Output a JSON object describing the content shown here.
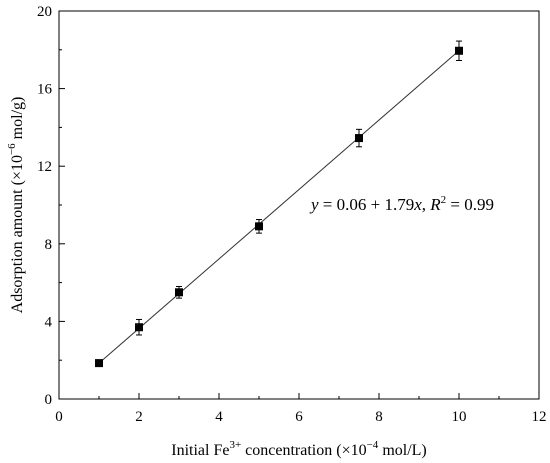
{
  "chart_data": {
    "type": "scatter",
    "title": "",
    "xlabel": {
      "prefix": "Initial Fe",
      "sup": "3+",
      "mid": " concentration (×10",
      "sup2": "−4",
      "suffix": " mol/L)"
    },
    "ylabel": {
      "prefix": "Adsorption amount (×10",
      "sup": "−6",
      "suffix": " mol/g)"
    },
    "xlim": [
      0,
      12
    ],
    "ylim": [
      0,
      20
    ],
    "xticks": [
      0,
      2,
      4,
      6,
      8,
      10,
      12
    ],
    "yticks": [
      0,
      4,
      8,
      12,
      16,
      20
    ],
    "grid": false,
    "legend": "none",
    "series": [
      {
        "x": [
          1,
          2,
          3,
          5,
          7.5,
          10
        ],
        "y": [
          1.85,
          3.7,
          5.5,
          8.9,
          13.45,
          17.95
        ],
        "error": [
          0.1,
          0.4,
          0.3,
          0.35,
          0.45,
          0.5
        ],
        "marker": "square",
        "color": "#000000"
      }
    ],
    "fit": {
      "intercept": 0.06,
      "slope": 1.79,
      "x_range": [
        1,
        10
      ]
    },
    "annotation": {
      "y": "y",
      "eq1": " = 0.06 + 1.79",
      "x": "x",
      "eq2": ", ",
      "R": "R",
      "sup": "2",
      "eq3": " = 0.99"
    }
  }
}
